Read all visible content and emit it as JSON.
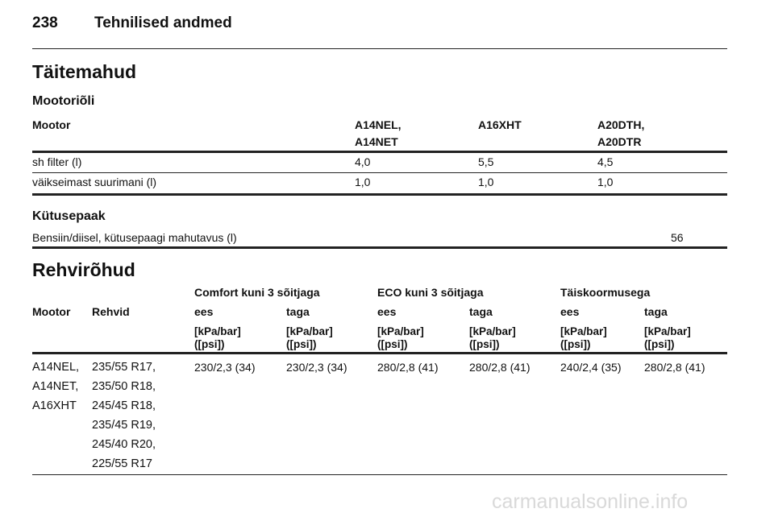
{
  "header": {
    "page_number": "238",
    "title": "Tehnilised andmed"
  },
  "section_fill": "Täitemahud",
  "oil": {
    "subtitle": "Mootoriõli",
    "columns": [
      "Mootor",
      "A14NEL,\nA14NET",
      "A16XHT",
      "A20DTH,\nA20DTR"
    ],
    "rows": [
      [
        "sh filter (l)",
        "4,0",
        "5,5",
        "4,5"
      ],
      [
        "väikseimast suurimani (l)",
        "1,0",
        "1,0",
        "1,0"
      ]
    ]
  },
  "fuel": {
    "subtitle": "Kütusepaak",
    "row": {
      "label": "Bensiin/diisel, kütusepaagi mahutavus (l)",
      "value": "56"
    }
  },
  "tires": {
    "title": "Rehvirõhud",
    "groups": [
      "Comfort kuni 3 sõitjaga",
      "ECO kuni 3 sõitjaga",
      "Täiskoormusega"
    ],
    "col_engine": "Mootor",
    "col_tire": "Rehvid",
    "axles": [
      "ees",
      "taga",
      "ees",
      "taga",
      "ees",
      "taga"
    ],
    "unit_top": "[kPa/bar]",
    "unit_bottom": "([psi])",
    "row": {
      "engine": "A14NEL,\nA14NET,\nA16XHT",
      "tires": "235/55 R17,\n235/50 R18,\n245/45 R18,\n235/45 R19,\n245/40 R20,\n225/55 R17",
      "values": [
        "230/2,3 (34)",
        "230/2,3 (34)",
        "280/2,8 (41)",
        "280/2,8 (41)",
        "240/2,4 (35)",
        "280/2,8 (41)"
      ]
    }
  },
  "watermark": "carmanualsonline.info"
}
